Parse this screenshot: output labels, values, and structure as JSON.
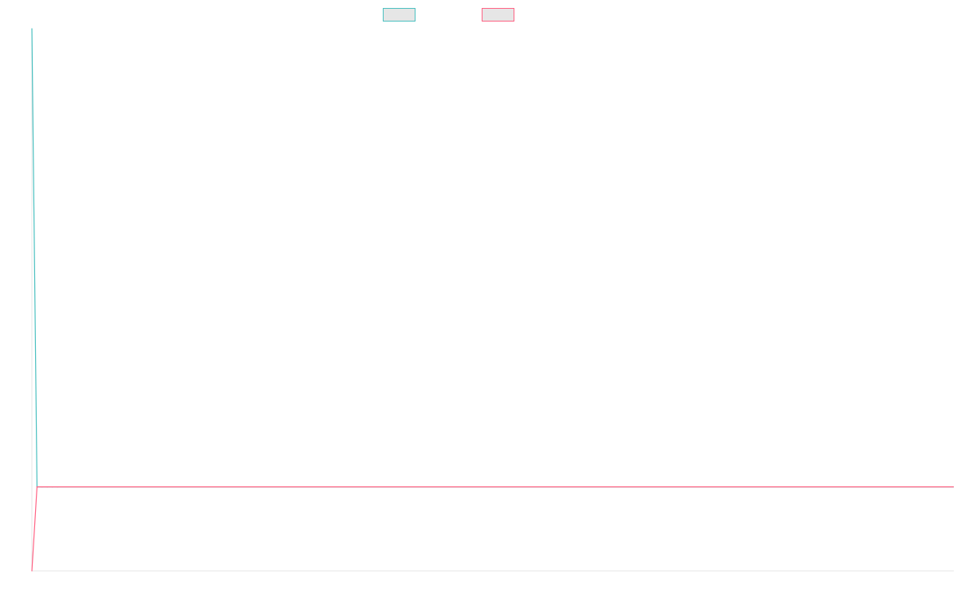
{
  "chart_data": {
    "type": "line",
    "title": "",
    "xlabel": "",
    "ylabel": "",
    "grid": false,
    "legend": {
      "position": "top-center",
      "entries": [
        {
          "label": "",
          "color": "#4bc0c0"
        },
        {
          "label": "",
          "color": "#ff6384"
        }
      ]
    },
    "x": [
      0,
      1,
      2,
      3,
      4,
      5
    ],
    "xlim": [
      0,
      180
    ],
    "ylim": [
      0,
      100
    ],
    "series": [
      {
        "color": "#4bc0c0",
        "values": [
          100,
          15.5,
          15.5,
          15.5,
          15.5,
          15.5
        ]
      },
      {
        "color": "#ff6384",
        "values": [
          0,
          15.5,
          15.5,
          15.5,
          15.5,
          15.5
        ]
      }
    ]
  }
}
